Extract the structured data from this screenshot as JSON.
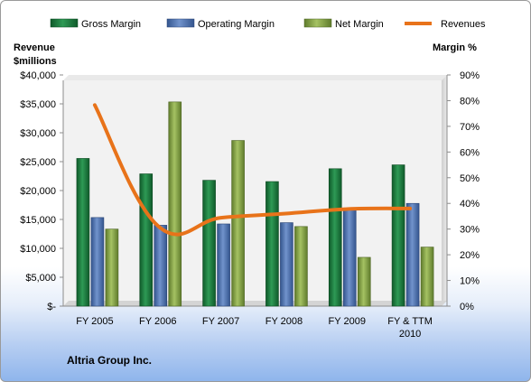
{
  "chart_data": {
    "type": "bar",
    "categories": [
      "FY 2005",
      "FY 2006",
      "FY 2007",
      "FY 2008",
      "FY 2009",
      "FY & TTM 2010"
    ],
    "series": [
      {
        "name": "Gross Margin",
        "axis": "right",
        "color": "#1f7a3c",
        "values": [
          57.5,
          51.5,
          49,
          48.5,
          53.5,
          55
        ]
      },
      {
        "name": "Operating Margin",
        "axis": "right",
        "color": "#4e73b0",
        "values": [
          34.5,
          31.5,
          32,
          32.5,
          37.5,
          40
        ]
      },
      {
        "name": "Net Margin",
        "axis": "right",
        "color": "#8aa64a",
        "values": [
          30,
          79.5,
          64.5,
          31,
          19,
          23
        ]
      },
      {
        "name": "Revenues",
        "type": "line",
        "axis": "left",
        "color": "#e8731a",
        "values": [
          34800,
          13900,
          15300,
          16000,
          16800,
          16900
        ]
      }
    ],
    "left_axis": {
      "title_line1": "Revenue",
      "title_line2": "$millions",
      "ylim": [
        0,
        40000
      ],
      "ticks": [
        "$-",
        "$5,000",
        "$10,000",
        "$15,000",
        "$20,000",
        "$25,000",
        "$30,000",
        "$35,000",
        "$40,000"
      ]
    },
    "right_axis": {
      "title": "Margin %",
      "ylim": [
        0,
        90
      ],
      "ticks": [
        "0%",
        "10%",
        "20%",
        "30%",
        "40%",
        "50%",
        "60%",
        "70%",
        "80%",
        "90%"
      ]
    },
    "legend_position": "top",
    "grid": false
  },
  "company_name": "Altria Group Inc."
}
